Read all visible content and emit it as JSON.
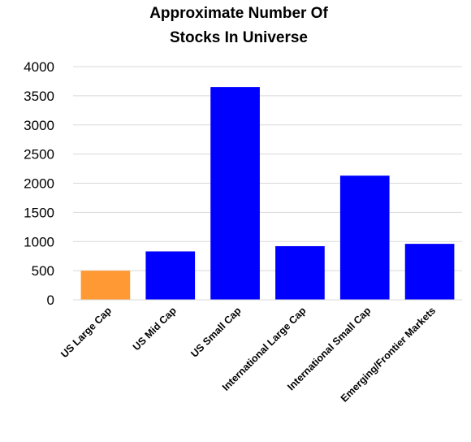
{
  "chart_data": {
    "type": "bar",
    "title_lines": [
      "Approximate Number Of",
      "Stocks In Universe"
    ],
    "categories": [
      "US Large Cap",
      "US Mid Cap",
      "US Small Cap",
      "International Large Cap",
      "International Small Cap",
      "Emerging/Frontier Markets"
    ],
    "values": [
      500,
      830,
      3650,
      920,
      2130,
      960
    ],
    "bar_colors": [
      "#ff9933",
      "#0000ff",
      "#0000ff",
      "#0000ff",
      "#0000ff",
      "#0000ff"
    ],
    "ylim": [
      0,
      4000
    ],
    "yticks": [
      0,
      500,
      1000,
      1500,
      2000,
      2500,
      3000,
      3500,
      4000
    ],
    "grid": true,
    "legend": "none"
  }
}
